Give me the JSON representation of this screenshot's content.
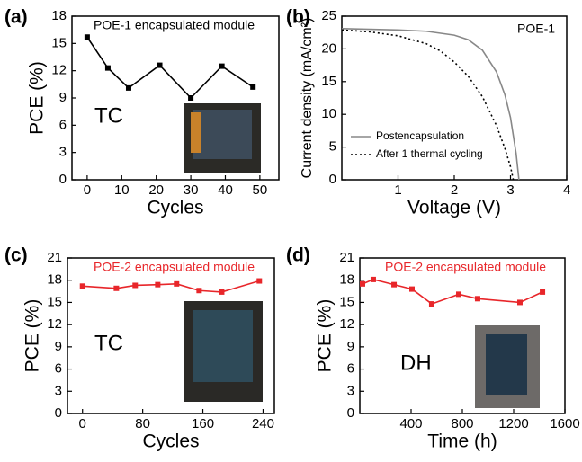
{
  "chart_data": [
    {
      "type": "line",
      "panel_label": "(a)",
      "xlabel": "Cycles",
      "ylabel": "PCE (%)",
      "annotations": [
        "POE-1 encapsulated module",
        "TC"
      ],
      "color": "#000000",
      "marker": "square",
      "x": [
        0,
        6,
        12,
        21,
        30,
        39,
        48
      ],
      "values": [
        15.7,
        12.3,
        10.1,
        12.6,
        9.0,
        12.5,
        10.2
      ],
      "xlim": [
        -4.4,
        55.5
      ],
      "xticks": [
        0,
        10,
        20,
        30,
        40,
        50
      ],
      "ylim": [
        0,
        18
      ],
      "yticks": [
        0,
        3,
        6,
        9,
        12,
        15,
        18
      ]
    },
    {
      "type": "line",
      "panel_label": "(b)",
      "xlabel": "Voltage (V)",
      "ylabel": "Current density (mA/cm²)",
      "annotations": [
        "POE-1"
      ],
      "legend": "lower left",
      "series": [
        {
          "name": "Postencapsulation",
          "color": "#888888",
          "linestyle": "solid",
          "x": [
            0,
            0.5,
            1,
            1.5,
            2,
            2.25,
            2.5,
            2.75,
            2.9,
            3.0,
            3.1,
            3.15
          ],
          "values": [
            23.1,
            23.0,
            22.9,
            22.7,
            22.1,
            21.4,
            19.8,
            16.5,
            13,
            9.5,
            4,
            0
          ]
        },
        {
          "name": "After 1 thermal cycling",
          "color": "#000000",
          "linestyle": "dotted",
          "x": [
            0,
            0.5,
            1,
            1.5,
            1.75,
            2,
            2.25,
            2.5,
            2.75,
            2.9,
            3.0,
            3.05
          ],
          "values": [
            22.9,
            22.6,
            22.0,
            20.8,
            19.7,
            18.0,
            15.8,
            12.7,
            8.3,
            4.8,
            2,
            0
          ]
        }
      ],
      "xlim": [
        0,
        4
      ],
      "xticks": [
        1,
        2,
        3,
        4
      ],
      "ylim": [
        0,
        25
      ],
      "yticks": [
        0,
        5,
        10,
        15,
        20,
        25
      ]
    },
    {
      "type": "line",
      "panel_label": "(c)",
      "xlabel": "Cycles",
      "ylabel": "PCE (%)",
      "annotations": [
        "POE-2 encapsulated module",
        "TC"
      ],
      "color": "#e8262a",
      "marker": "square",
      "x": [
        0,
        45,
        70,
        100,
        125,
        155,
        185,
        235
      ],
      "values": [
        17.2,
        16.9,
        17.3,
        17.4,
        17.5,
        16.6,
        16.4,
        17.9
      ],
      "xlim": [
        -20,
        255
      ],
      "xticks": [
        0,
        80,
        160,
        240
      ],
      "ylim": [
        0,
        21
      ],
      "yticks": [
        0,
        3,
        6,
        9,
        12,
        15,
        18,
        21
      ]
    },
    {
      "type": "line",
      "panel_label": "(d)",
      "xlabel": "Time (h)",
      "ylabel": "PCE (%)",
      "annotations": [
        "POE-2 encapsulated module",
        "DH"
      ],
      "color": "#e8262a",
      "marker": "square",
      "x": [
        21,
        105,
        267,
        407,
        561,
        772,
        919,
        1249,
        1425
      ],
      "values": [
        17.5,
        18.1,
        17.4,
        16.8,
        14.8,
        16.1,
        15.5,
        15.0,
        16.4
      ],
      "xlim": [
        0,
        1600
      ],
      "xticks": [
        400,
        800,
        1200,
        1600
      ],
      "ylim": [
        0,
        21
      ],
      "yticks": [
        0,
        3,
        6,
        9,
        12,
        15,
        18,
        21
      ]
    }
  ]
}
